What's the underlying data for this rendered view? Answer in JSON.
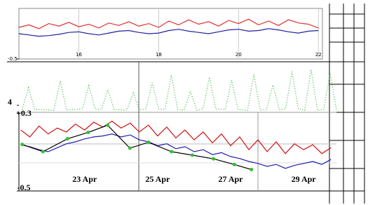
{
  "chart_data": [
    {
      "type": "line",
      "xlim": [
        14.5,
        22.1
      ],
      "ylim": [
        -0.5,
        0.3
      ],
      "yticks": [
        -0.5
      ],
      "xticks": [
        16,
        18,
        20,
        22
      ],
      "grid": true,
      "series": [
        {
          "color": "#e03030",
          "x": [
            14.5,
            14.75,
            15,
            15.25,
            15.5,
            15.75,
            16,
            16.25,
            16.5,
            16.75,
            17,
            17.25,
            17.5,
            17.75,
            18,
            18.25,
            18.5,
            18.75,
            19,
            19.25,
            19.5,
            19.75,
            20,
            20.25,
            20.5,
            20.75,
            21,
            21.25,
            21.5,
            21.75,
            22
          ],
          "values": [
            0.0,
            0.04,
            -0.02,
            0.06,
            0.02,
            0.08,
            0.01,
            0.05,
            -0.01,
            0.07,
            0.03,
            0.09,
            0.02,
            0.06,
            0.0,
            0.1,
            0.04,
            0.12,
            0.05,
            0.09,
            0.02,
            0.11,
            0.06,
            0.13,
            0.04,
            0.1,
            0.03,
            0.12,
            0.07,
            0.05,
            -0.01
          ]
        },
        {
          "color": "#2020a0",
          "x": [
            14.5,
            14.75,
            15,
            15.25,
            15.5,
            15.75,
            16,
            16.25,
            16.5,
            16.75,
            17,
            17.25,
            17.5,
            17.75,
            18,
            18.25,
            18.5,
            18.75,
            19,
            19.25,
            19.5,
            19.75,
            20,
            20.25,
            20.5,
            20.75,
            21,
            21.25,
            21.5,
            21.75,
            22
          ],
          "values": [
            -0.1,
            -0.12,
            -0.14,
            -0.13,
            -0.11,
            -0.08,
            -0.07,
            -0.1,
            -0.12,
            -0.09,
            -0.06,
            -0.05,
            -0.08,
            -0.1,
            -0.09,
            -0.05,
            -0.03,
            -0.06,
            -0.08,
            -0.1,
            -0.07,
            -0.04,
            -0.03,
            -0.06,
            -0.05,
            -0.02,
            -0.04,
            -0.07,
            -0.09,
            -0.06,
            -0.05
          ]
        }
      ]
    },
    {
      "type": "dotted",
      "xlim": [
        0,
        100
      ],
      "ylim": [
        3,
        10
      ],
      "yticks": [
        4
      ],
      "series": [
        {
          "color": "#30b030",
          "x": [
            1,
            3,
            5,
            11,
            13,
            15,
            20,
            22,
            24,
            26,
            28,
            30,
            34,
            36,
            38,
            40,
            42,
            44,
            46,
            48,
            50,
            52,
            54,
            56,
            58,
            60,
            62,
            65,
            67,
            69,
            72,
            74,
            76,
            78,
            80,
            82,
            84,
            86,
            88,
            90,
            92,
            94,
            96,
            98,
            100
          ],
          "values": [
            3.4,
            6.5,
            3.4,
            3.3,
            7.5,
            3.3,
            3.5,
            6.8,
            3.5,
            3.4,
            6.2,
            3.4,
            3.3,
            5.8,
            3.3,
            3.5,
            7.2,
            3.5,
            3.4,
            8.3,
            3.4,
            3.3,
            6.0,
            3.3,
            3.5,
            8.0,
            3.5,
            3.4,
            7.6,
            3.4,
            3.3,
            8.4,
            3.3,
            3.4,
            6.9,
            3.4,
            3.5,
            8.8,
            3.5,
            3.3,
            9.1,
            3.3,
            3.4,
            8.6,
            3.4
          ]
        }
      ]
    },
    {
      "type": "line",
      "xlim": [
        21.2,
        29.9
      ],
      "ylim": [
        -0.5,
        0.3
      ],
      "yticks": [
        {
          "value": -0.5,
          "label": "-0.5"
        },
        {
          "value": 0.3,
          "label": "+0.3"
        }
      ],
      "xticks": [
        {
          "value": 23,
          "label": "23 Apr"
        },
        {
          "value": 25,
          "label": "25 Apr"
        },
        {
          "value": 27,
          "label": "27 Apr"
        },
        {
          "value": 29,
          "label": "29 Apr"
        }
      ],
      "series": [
        {
          "color": "#d01010",
          "x": [
            21.25,
            21.5,
            21.75,
            22,
            22.25,
            22.5,
            22.75,
            23,
            23.25,
            23.5,
            23.75,
            24,
            24.25,
            24.5,
            24.75,
            25,
            25.25,
            25.5,
            25.75,
            26,
            26.25,
            26.5,
            26.75,
            27,
            27.25,
            27.5,
            27.75,
            28,
            28.25,
            28.5,
            28.75,
            29,
            29.25,
            29.5,
            29.75
          ],
          "values": [
            0.12,
            0.05,
            0.16,
            0.08,
            0.14,
            0.1,
            0.18,
            0.12,
            0.2,
            0.15,
            0.21,
            0.14,
            0.19,
            0.1,
            0.17,
            0.06,
            0.15,
            0.04,
            0.12,
            0.02,
            0.1,
            -0.01,
            0.08,
            -0.04,
            0.05,
            -0.08,
            0.02,
            -0.1,
            0.0,
            -0.12,
            -0.02,
            -0.08,
            -0.03,
            -0.12,
            -0.06
          ]
        },
        {
          "color": "#2020b0",
          "x": [
            21.25,
            21.5,
            21.75,
            22,
            22.25,
            22.5,
            22.75,
            23,
            23.25,
            23.5,
            23.75,
            24,
            24.25,
            24.5,
            24.75,
            25,
            25.25,
            25.5,
            25.75,
            26,
            26.25,
            26.5,
            26.75,
            27,
            27.25,
            27.5,
            27.75,
            28,
            28.25,
            28.5,
            28.75,
            29,
            29.25,
            29.5,
            29.75
          ],
          "values": [
            -0.03,
            -0.05,
            -0.08,
            -0.1,
            -0.06,
            -0.02,
            0.0,
            0.03,
            0.05,
            0.06,
            0.08,
            0.05,
            0.07,
            0.02,
            0.0,
            -0.04,
            -0.02,
            -0.07,
            -0.05,
            -0.1,
            -0.08,
            -0.13,
            -0.11,
            -0.15,
            -0.17,
            -0.2,
            -0.22,
            -0.25,
            -0.23,
            -0.27,
            -0.24,
            -0.22,
            -0.2,
            -0.23,
            -0.18
          ]
        },
        {
          "color": "#000000",
          "marker_color": "#30c030",
          "x": [
            21.29,
            21.86,
            22.53,
            23.1,
            23.63,
            24.24,
            24.75,
            25.38,
            25.95,
            26.53,
            27.1,
            27.57
          ],
          "values": [
            -0.027,
            -0.1,
            0.031,
            0.096,
            0.169,
            -0.064,
            -0.005,
            -0.1,
            -0.136,
            -0.173,
            -0.231,
            -0.282
          ]
        }
      ]
    }
  ]
}
